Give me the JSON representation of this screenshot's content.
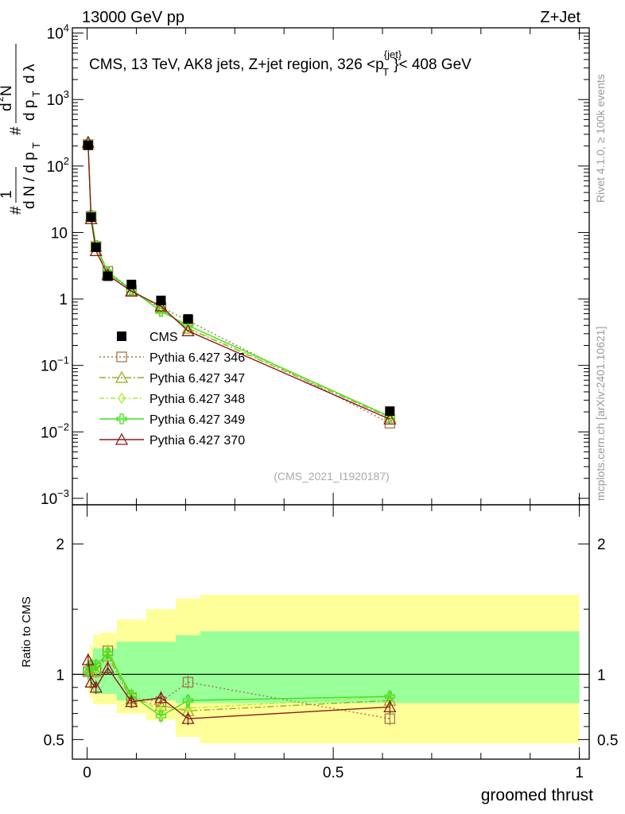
{
  "header": {
    "left": "13000 GeV pp",
    "right": "Z+Jet",
    "plot_title": "CMS, 13 TeV, AK8 jets, Z+jet region, 326 <p",
    "plot_title_sup": "{jet}",
    "plot_title_sub": "T",
    "plot_title_end": "}< 408 GeV"
  },
  "side_labels": {
    "rivet": "Rivet 4.1.0, ≥ 100k events",
    "mcplots": "mcplots.cern.ch [arXiv:2401.10621]"
  },
  "analysis_id": "(CMS_2021_I1920187)",
  "chart_data": {
    "type": "line",
    "x_label": "groomed thrust",
    "y_label_main": "1/dN/dpT d2N/dpT dlambda",
    "y_label_ratio": "Ratio to CMS",
    "x_range": [
      -0.03,
      1.02
    ],
    "y_range_main": [
      0.0008,
      12000
    ],
    "y_scale_main": "log",
    "y_range_ratio": [
      0.35,
      2.3
    ],
    "x_ticks": [
      {
        "v": 0,
        "label": "0"
      },
      {
        "v": 0.5,
        "label": "0.5"
      },
      {
        "v": 1,
        "label": "1"
      }
    ],
    "y_ticks_main": [
      {
        "v": 0.001,
        "base": "10",
        "exp": "−3"
      },
      {
        "v": 0.01,
        "base": "10",
        "exp": "−2"
      },
      {
        "v": 0.1,
        "base": "10",
        "exp": "−1"
      },
      {
        "v": 1,
        "base": "1",
        "exp": ""
      },
      {
        "v": 10,
        "base": "10",
        "exp": ""
      },
      {
        "v": 100,
        "base": "10",
        "exp": "2"
      },
      {
        "v": 1000,
        "base": "10",
        "exp": "3"
      },
      {
        "v": 10000,
        "base": "10",
        "exp": "4"
      }
    ],
    "y_ticks_ratio": [
      {
        "v": 0.5,
        "label": "0.5"
      },
      {
        "v": 1,
        "label": "1"
      },
      {
        "v": 2,
        "label": "2"
      }
    ],
    "x": [
      0.002,
      0.008,
      0.018,
      0.042,
      0.09,
      0.15,
      0.205,
      0.615
    ],
    "data": {
      "name": "CMS",
      "values": [
        205,
        17,
        6.0,
        2.2,
        1.65,
        0.95,
        0.5,
        0.0205
      ]
    },
    "bands": {
      "x_edges": [
        0,
        0.005,
        0.012,
        0.025,
        0.06,
        0.12,
        0.18,
        0.23,
        1.0
      ],
      "inner": [
        [
          0.95,
          1.06
        ],
        [
          0.9,
          1.12
        ],
        [
          0.85,
          1.2
        ],
        [
          0.85,
          1.2
        ],
        [
          0.8,
          1.25
        ],
        [
          0.8,
          1.25
        ],
        [
          0.78,
          1.3
        ],
        [
          0.78,
          1.33
        ]
      ],
      "outer": [
        [
          0.88,
          1.12
        ],
        [
          0.82,
          1.22
        ],
        [
          0.77,
          1.3
        ],
        [
          0.77,
          1.32
        ],
        [
          0.7,
          1.42
        ],
        [
          0.65,
          1.5
        ],
        [
          0.52,
          1.58
        ],
        [
          0.47,
          1.61
        ]
      ]
    },
    "series": [
      {
        "name": "Pythia 6.427 346",
        "color": "#a0764a",
        "marker": "square",
        "dash": "2,3",
        "values": [
          210,
          17.5,
          6.2,
          2.6,
          1.35,
          0.75,
          0.47,
          0.0135
        ],
        "ratio": [
          1.02,
          1.03,
          1.03,
          1.18,
          0.82,
          0.79,
          0.94,
          0.66
        ]
      },
      {
        "name": "Pythia 6.427 347",
        "color": "#9aaa22",
        "marker": "triangle",
        "dash": "8,3,2,3",
        "values": [
          212,
          17.8,
          6.1,
          2.5,
          1.33,
          0.72,
          0.36,
          0.0165
        ],
        "ratio": [
          1.03,
          1.05,
          1.02,
          1.14,
          0.81,
          0.76,
          0.72,
          0.8
        ]
      },
      {
        "name": "Pythia 6.427 348",
        "color": "#aaee33",
        "marker": "diamond",
        "dash": "6,3,2,3",
        "values": [
          211,
          18.0,
          6.3,
          2.6,
          1.4,
          0.68,
          0.37,
          0.017
        ],
        "ratio": [
          1.03,
          1.06,
          1.05,
          1.18,
          0.85,
          0.72,
          0.74,
          0.83
        ]
      },
      {
        "name": "Pythia 6.427 349",
        "color": "#44dd22",
        "marker": "cross",
        "dash": "",
        "values": [
          212,
          18.2,
          6.4,
          2.55,
          1.38,
          0.65,
          0.4,
          0.017
        ],
        "ratio": [
          1.03,
          1.07,
          1.07,
          1.16,
          0.84,
          0.68,
          0.8,
          0.83
        ]
      },
      {
        "name": "Pythia 6.427 370",
        "color": "#8b1a1a",
        "marker": "triangle",
        "dash": "",
        "values": [
          228,
          16.0,
          5.3,
          2.3,
          1.3,
          0.78,
          0.33,
          0.0155
        ],
        "ratio": [
          1.11,
          0.94,
          0.9,
          1.05,
          0.79,
          0.82,
          0.66,
          0.75
        ]
      }
    ]
  }
}
